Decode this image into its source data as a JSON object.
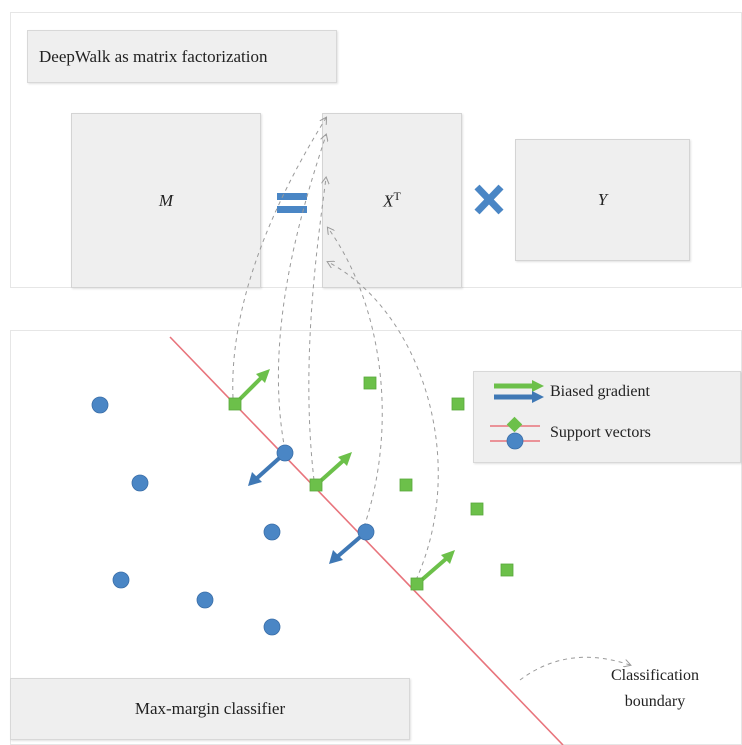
{
  "top_panel": {
    "title": "DeepWalk as matrix factorization",
    "matrix_m": "M",
    "matrix_x": "X",
    "matrix_x_sup": "T",
    "matrix_y": "Y",
    "equals_icon": "equals-icon",
    "times_icon": "times-icon"
  },
  "bottom_panel": {
    "caption": "Max-margin classifier",
    "boundary_label_line1": "Classification",
    "boundary_label_line2": "boundary"
  },
  "legend": {
    "biased_gradient": "Biased gradient",
    "support_vectors": "Support vectors"
  },
  "colors": {
    "blue": "#4a86c5",
    "green": "#6cc04a",
    "boundary": "#e8747c",
    "dashed": "#9a9a9a",
    "panel_fill": "#efefef"
  }
}
